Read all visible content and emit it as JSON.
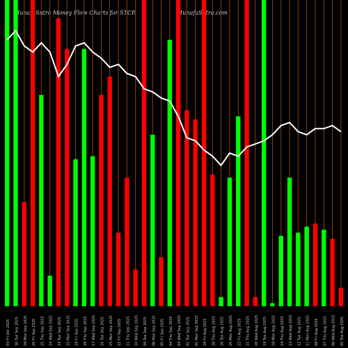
{
  "header": {
    "title": "MunafaSutra  Money Flow  Charts for STCE",
    "site": "MunafaSutra.com"
  },
  "colors": {
    "background": "#000000",
    "up_bar": "#00ff00",
    "down_bar": "#ff0000",
    "vertical_line": "#8b4513",
    "line": "#ffffff",
    "label": "#cccccc"
  },
  "chart_data": {
    "type": "bar",
    "title": "MunafaSutra  Money Flow  Charts for STCE",
    "categories": [
      "03 Fri Oct 2025",
      "30 Tue Sep 2025",
      "29 Mon Sep 2025",
      "26 Fri Sep 2025",
      "25 Thu Sep 2025",
      "24 Wed Sep 2025",
      "23 Tue Sep 2025",
      "22 Mon Sep 2025",
      "19 Fri Sep 2025",
      "18 Thu Sep 2025",
      "17 Wed Sep 2025",
      "16 Tue Sep 2025",
      "15 Mon Sep 2025",
      "12 Fri Sep 2025",
      "11 Thu Sep 2025",
      "10 Wed Sep 2025",
      "09 Tue Sep 2025",
      "08 Mon Sep 2025",
      "05 Fri Sep 2025",
      "04 Thu Sep 2025",
      "03 Wed Sep 2025",
      "02 Tue Sep 2025",
      "01 Mon Sep 2025",
      "29 Fri Aug 2025",
      "28 Thu Aug 2025",
      "26 Tue Aug 2025",
      "25 Mon Aug 2025",
      "22 Fri Aug 2025",
      "21 Thu Aug 2025",
      "20 Wed Aug 2025",
      "19 Tue Aug 2025",
      "18 Mon Aug 2025",
      "14 Thu Aug 2025",
      "13 Wed Aug 2025",
      "12 Tue Aug 2025",
      "11 Mon Aug 2025",
      "08 Fri Aug 2025",
      "07 Thu Aug 2025",
      "06 Wed Aug 2025",
      "05 Tue Aug 2025"
    ],
    "bar_colors": [
      "green",
      "green",
      "red",
      "red",
      "green",
      "green",
      "red",
      "red",
      "green",
      "green",
      "green",
      "red",
      "red",
      "red",
      "red",
      "red",
      "red",
      "green",
      "red",
      "green",
      "red",
      "red",
      "red",
      "red",
      "red",
      "green",
      "green",
      "green",
      "red",
      "red",
      "green",
      "green",
      "green",
      "green",
      "green",
      "green",
      "red",
      "green",
      "red",
      "red"
    ],
    "bar_values": [
      100,
      100,
      34,
      100,
      69,
      10,
      94,
      84,
      48,
      84,
      49,
      69,
      75,
      24,
      42,
      12,
      100,
      56,
      16,
      87,
      100,
      64,
      61,
      100,
      43,
      3,
      42,
      62,
      100,
      3,
      100,
      1,
      23,
      42,
      24,
      26,
      27,
      25,
      22,
      6
    ],
    "line_values": [
      87,
      90,
      85,
      83,
      86,
      83,
      75,
      79,
      85,
      86,
      83,
      81,
      78,
      79,
      76,
      75,
      71,
      70,
      68,
      67,
      62,
      55,
      54,
      51,
      49,
      46,
      50,
      49,
      52,
      53,
      54,
      56,
      59,
      60,
      57,
      56,
      58,
      58,
      59,
      57
    ],
    "bar_ylim": [
      0,
      100
    ],
    "line_ylim": [
      0,
      100
    ],
    "xlabel": "",
    "ylabel": "",
    "grid": true,
    "x_order": "newest first"
  }
}
